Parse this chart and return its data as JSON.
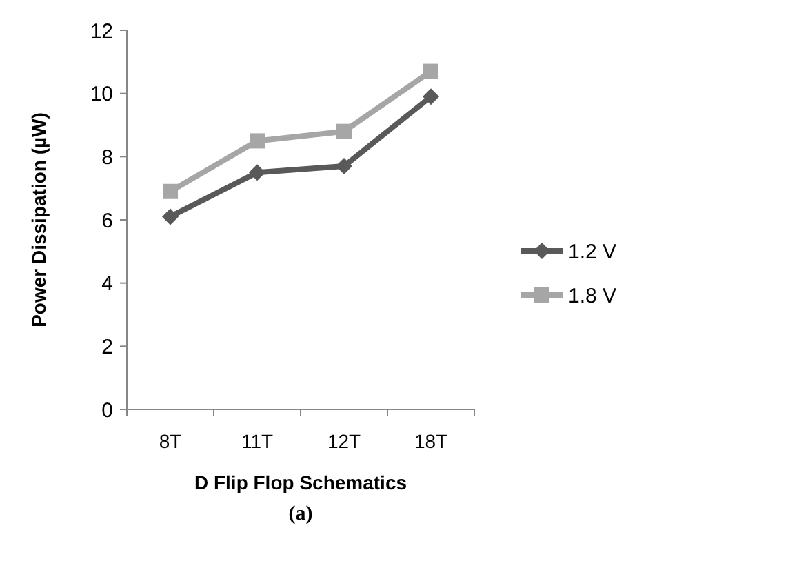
{
  "chart_data": {
    "type": "line",
    "xlabel": "D Flip Flop Schematics",
    "ylabel": "Power Dissipation  (µW)",
    "categories": [
      "8T",
      "11T",
      "12T",
      "18T"
    ],
    "series": [
      {
        "name": "1.2 V",
        "color": "#595959",
        "marker": "diamond",
        "values": [
          6.1,
          7.5,
          7.7,
          9.9
        ]
      },
      {
        "name": "1.8 V",
        "color": "#a6a6a6",
        "marker": "square",
        "values": [
          6.9,
          8.5,
          8.8,
          10.7
        ]
      }
    ],
    "ylim": [
      0,
      12
    ],
    "yticks": [
      0,
      2,
      4,
      6,
      8,
      10,
      12
    ],
    "legend": "right",
    "annotations": [
      "(a)"
    ]
  }
}
